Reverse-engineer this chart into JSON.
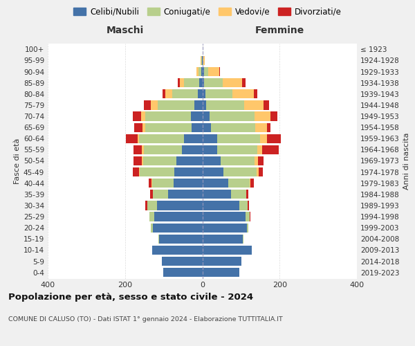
{
  "age_groups": [
    "0-4",
    "5-9",
    "10-14",
    "15-19",
    "20-24",
    "25-29",
    "30-34",
    "35-39",
    "40-44",
    "45-49",
    "50-54",
    "55-59",
    "60-64",
    "65-69",
    "70-74",
    "75-79",
    "80-84",
    "85-89",
    "90-94",
    "95-99",
    "100+"
  ],
  "birth_years": [
    "2019-2023",
    "2014-2018",
    "2009-2013",
    "2004-2008",
    "1999-2003",
    "1994-1998",
    "1989-1993",
    "1984-1988",
    "1979-1983",
    "1974-1978",
    "1969-1973",
    "1964-1968",
    "1959-1963",
    "1954-1958",
    "1949-1953",
    "1944-1948",
    "1939-1943",
    "1934-1938",
    "1929-1933",
    "1924-1928",
    "≤ 1923"
  ],
  "males": {
    "celibinubili": [
      102,
      105,
      130,
      112,
      128,
      125,
      118,
      88,
      75,
      72,
      68,
      52,
      48,
      28,
      30,
      20,
      12,
      8,
      2,
      1,
      0
    ],
    "coniugati": [
      0,
      0,
      0,
      2,
      5,
      12,
      25,
      40,
      55,
      90,
      85,
      100,
      115,
      120,
      118,
      95,
      65,
      40,
      8,
      2,
      0
    ],
    "vedovi": [
      0,
      0,
      0,
      0,
      0,
      0,
      0,
      0,
      1,
      2,
      3,
      4,
      4,
      6,
      10,
      18,
      18,
      10,
      5,
      1,
      0
    ],
    "divorziati": [
      0,
      0,
      0,
      0,
      0,
      0,
      4,
      8,
      8,
      15,
      22,
      22,
      30,
      22,
      22,
      18,
      8,
      5,
      0,
      0,
      0
    ]
  },
  "females": {
    "celibinubili": [
      95,
      102,
      128,
      105,
      115,
      112,
      95,
      75,
      68,
      55,
      48,
      38,
      38,
      22,
      18,
      10,
      8,
      5,
      4,
      1,
      0
    ],
    "coniugate": [
      0,
      0,
      0,
      2,
      4,
      10,
      22,
      38,
      55,
      85,
      88,
      105,
      112,
      115,
      118,
      98,
      70,
      48,
      12,
      2,
      0
    ],
    "vedove": [
      0,
      0,
      0,
      0,
      0,
      0,
      0,
      1,
      2,
      5,
      8,
      12,
      18,
      30,
      40,
      50,
      55,
      50,
      28,
      4,
      0
    ],
    "divorziate": [
      0,
      0,
      0,
      0,
      0,
      2,
      4,
      5,
      8,
      12,
      15,
      42,
      35,
      10,
      18,
      15,
      10,
      8,
      2,
      0,
      0
    ]
  },
  "colors": {
    "celibinubili": "#4472a8",
    "coniugati": "#b8cf8c",
    "vedovi": "#ffc76b",
    "divorziati": "#cc2222"
  },
  "xlim": 400,
  "title": "Popolazione per età, sesso e stato civile - 2024",
  "subtitle": "COMUNE DI CALUSO (TO) - Dati ISTAT 1° gennaio 2024 - Elaborazione TUTTITALIA.IT",
  "ylabel": "Fasce di età",
  "ylabel_right": "Anni di nascita",
  "legend_labels": [
    "Celibi/Nubili",
    "Coniugati/e",
    "Vedovi/e",
    "Divorziati/e"
  ],
  "bg_color": "#f0f0f0",
  "plot_bg_color": "#ffffff",
  "grid_color": "#cccccc"
}
